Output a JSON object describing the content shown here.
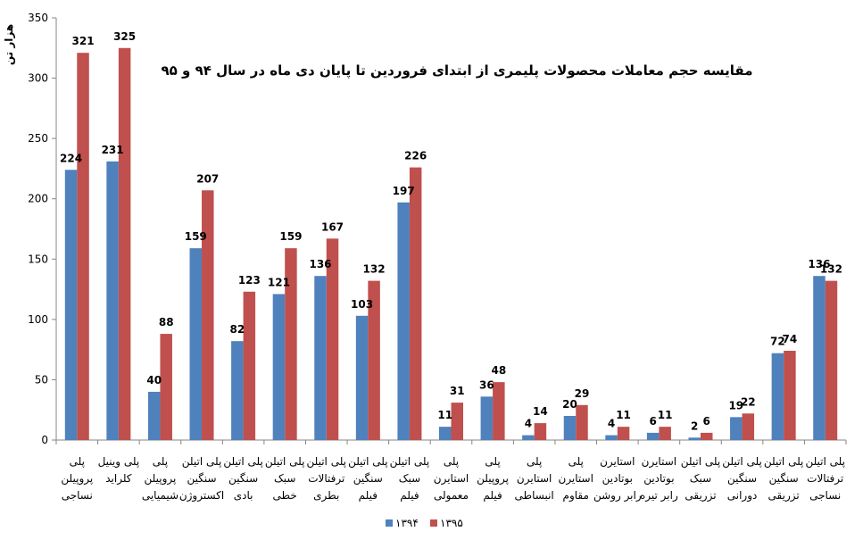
{
  "chart_data": {
    "type": "bar",
    "title": "مقایسه حجم معاملات محصولات پلیمری از ابتدای فروردین تا پایان دی ماه در سال ۹۴ و ۹۵",
    "ylabel": "هزار تن",
    "xlabel": "",
    "ylim": [
      0,
      350
    ],
    "yticks": [
      0,
      50,
      100,
      150,
      200,
      250,
      300,
      350
    ],
    "grid": false,
    "legend_position": "bottom",
    "categories": [
      [
        "پلی",
        "پروپیلن",
        "نساجی"
      ],
      [
        "پلی وینیل",
        "کلراید"
      ],
      [
        "پلی",
        "پروپیلن",
        "شیمیایی"
      ],
      [
        "پلی اتیلن",
        "سنگین",
        "اکستروژن"
      ],
      [
        "پلی اتیلن",
        "سنگین",
        "بادی"
      ],
      [
        "پلی اتیلن",
        "سبک",
        "خطی"
      ],
      [
        "پلی اتیلن",
        "ترفتالات",
        "بطری"
      ],
      [
        "پلی اتیلن",
        "سنگین",
        "فیلم"
      ],
      [
        "پلی اتیلن",
        "سبک",
        "فیلم"
      ],
      [
        "پلی",
        "استایرن",
        "معمولی"
      ],
      [
        "پلی",
        "پروپیلن",
        "فیلم"
      ],
      [
        "پلی",
        "استایرن",
        "انبساطی"
      ],
      [
        "پلی",
        "استایرن",
        "مقاوم"
      ],
      [
        "استایرن",
        "بوتادین",
        "رابر روشن"
      ],
      [
        "استایرن",
        "بوتادین",
        "رابر تیره"
      ],
      [
        "پلی اتیلن",
        "سبک",
        "تزریقی"
      ],
      [
        "پلی اتیلن",
        "سنگین",
        "دورانی"
      ],
      [
        "پلی اتیلن",
        "سنگین",
        "تزریقی"
      ],
      [
        "پلی اتیلن",
        "ترفتالات",
        "نساجی"
      ]
    ],
    "series": [
      {
        "name": "۱۳۹۴",
        "color": "#4F81BD",
        "values": [
          224,
          231,
          40,
          159,
          82,
          121,
          136,
          103,
          197,
          11,
          36,
          4,
          20,
          4,
          6,
          2,
          19,
          72,
          136
        ]
      },
      {
        "name": "۱۳۹۵",
        "color": "#C0504D",
        "values": [
          321,
          325,
          88,
          207,
          123,
          159,
          167,
          132,
          226,
          31,
          48,
          14,
          29,
          11,
          11,
          6,
          22,
          74,
          132
        ]
      }
    ]
  }
}
